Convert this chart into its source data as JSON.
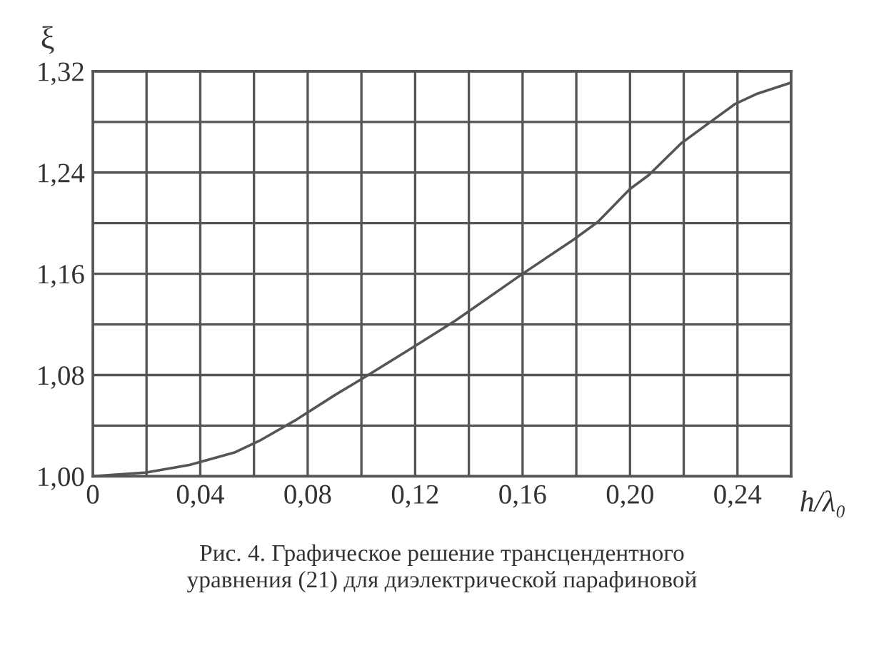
{
  "chart_data": {
    "type": "line",
    "ylabel": "ξ",
    "xlabel": "h/λ₀",
    "x": [
      0,
      0.02,
      0.036,
      0.053,
      0.062,
      0.076,
      0.09,
      0.101,
      0.12,
      0.135,
      0.16,
      0.179,
      0.188,
      0.2,
      0.207,
      0.219,
      0.228,
      0.239,
      0.247,
      0.26
    ],
    "series": [
      {
        "color": "#555555",
        "values": [
          1.0,
          1.003,
          1.009,
          1.019,
          1.028,
          1.045,
          1.064,
          1.078,
          1.103,
          1.123,
          1.16,
          1.187,
          1.201,
          1.227,
          1.238,
          1.263,
          1.277,
          1.294,
          1.302,
          1.311
        ]
      }
    ],
    "xlim": [
      0,
      0.26
    ],
    "ylim": [
      1.0,
      1.32
    ],
    "xticks": [
      {
        "value": 0,
        "label": "0"
      },
      {
        "value": 0.02,
        "label": null
      },
      {
        "value": 0.04,
        "label": "0,04"
      },
      {
        "value": 0.06,
        "label": null
      },
      {
        "value": 0.08,
        "label": "0,08"
      },
      {
        "value": 0.1,
        "label": null
      },
      {
        "value": 0.12,
        "label": "0,12"
      },
      {
        "value": 0.14,
        "label": null
      },
      {
        "value": 0.16,
        "label": "0,16"
      },
      {
        "value": 0.18,
        "label": null
      },
      {
        "value": 0.2,
        "label": "0,20"
      },
      {
        "value": 0.22,
        "label": null
      },
      {
        "value": 0.24,
        "label": "0,24"
      },
      {
        "value": 0.26,
        "label": null
      }
    ],
    "yticks": [
      {
        "value": 1.0,
        "label": "1,00"
      },
      {
        "value": 1.04,
        "label": null
      },
      {
        "value": 1.08,
        "label": "1,08"
      },
      {
        "value": 1.12,
        "label": null
      },
      {
        "value": 1.16,
        "label": "1,16"
      },
      {
        "value": 1.2,
        "label": null
      },
      {
        "value": 1.24,
        "label": "1,24"
      },
      {
        "value": 1.28,
        "label": null
      },
      {
        "value": 1.32,
        "label": "1,32"
      }
    ],
    "grid": true,
    "legend": false,
    "marker": "none",
    "line_style": "solid",
    "annotations": [
      "Рис. 4. Графическое решение трансцендентного\nуравнения (21) для диэлектрической парафиновой"
    ]
  }
}
